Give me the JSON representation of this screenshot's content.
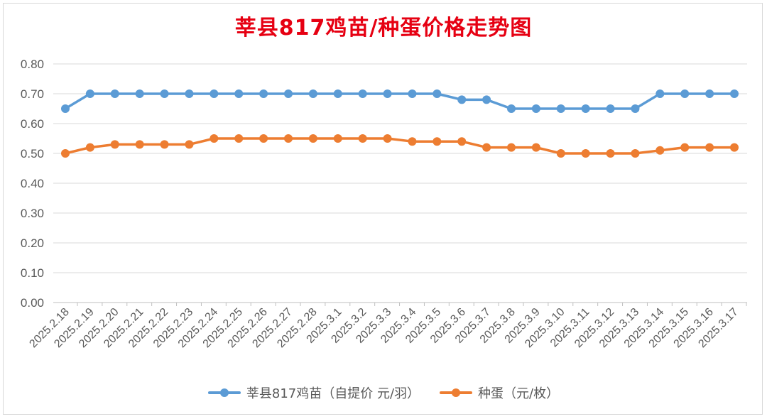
{
  "chart_data": {
    "type": "line",
    "title": "莘县817鸡苗/种蛋价格走势图",
    "xlabel": "",
    "ylabel": "",
    "categories": [
      "2025.2.18",
      "2025.2.19",
      "2025.2.20",
      "2025.2.21",
      "2025.2.22",
      "2025.2.23",
      "2025.2.24",
      "2025.2.25",
      "2025.2.26",
      "2025.2.27",
      "2025.2.28",
      "2025.3.1",
      "2025.3.2",
      "2025.3.3",
      "2025.3.4",
      "2025.3.5",
      "2025.3.6",
      "2025.3.7",
      "2025.3.8",
      "2025.3.9",
      "2025.3.10",
      "2025.3.11",
      "2025.3.12",
      "2025.3.13",
      "2025.3.14",
      "2025.3.15",
      "2025.3.16",
      "2025.3.17"
    ],
    "yticks": [
      "0.00",
      "0.10",
      "0.20",
      "0.30",
      "0.40",
      "0.50",
      "0.60",
      "0.70",
      "0.80"
    ],
    "ylim": [
      0,
      0.8
    ],
    "grid": true,
    "legend_position": "bottom",
    "series": [
      {
        "name": "莘县817鸡苗（自提价 元/羽）",
        "color": "#5b9bd5",
        "values": [
          0.65,
          0.7,
          0.7,
          0.7,
          0.7,
          0.7,
          0.7,
          0.7,
          0.7,
          0.7,
          0.7,
          0.7,
          0.7,
          0.7,
          0.7,
          0.7,
          0.68,
          0.68,
          0.65,
          0.65,
          0.65,
          0.65,
          0.65,
          0.65,
          0.7,
          0.7,
          0.7,
          0.7
        ]
      },
      {
        "name": "种蛋（元/枚）",
        "color": "#ed7d31",
        "values": [
          0.5,
          0.52,
          0.53,
          0.53,
          0.53,
          0.53,
          0.55,
          0.55,
          0.55,
          0.55,
          0.55,
          0.55,
          0.55,
          0.55,
          0.54,
          0.54,
          0.54,
          0.52,
          0.52,
          0.52,
          0.5,
          0.5,
          0.5,
          0.5,
          0.51,
          0.52,
          0.52,
          0.52
        ]
      }
    ]
  }
}
